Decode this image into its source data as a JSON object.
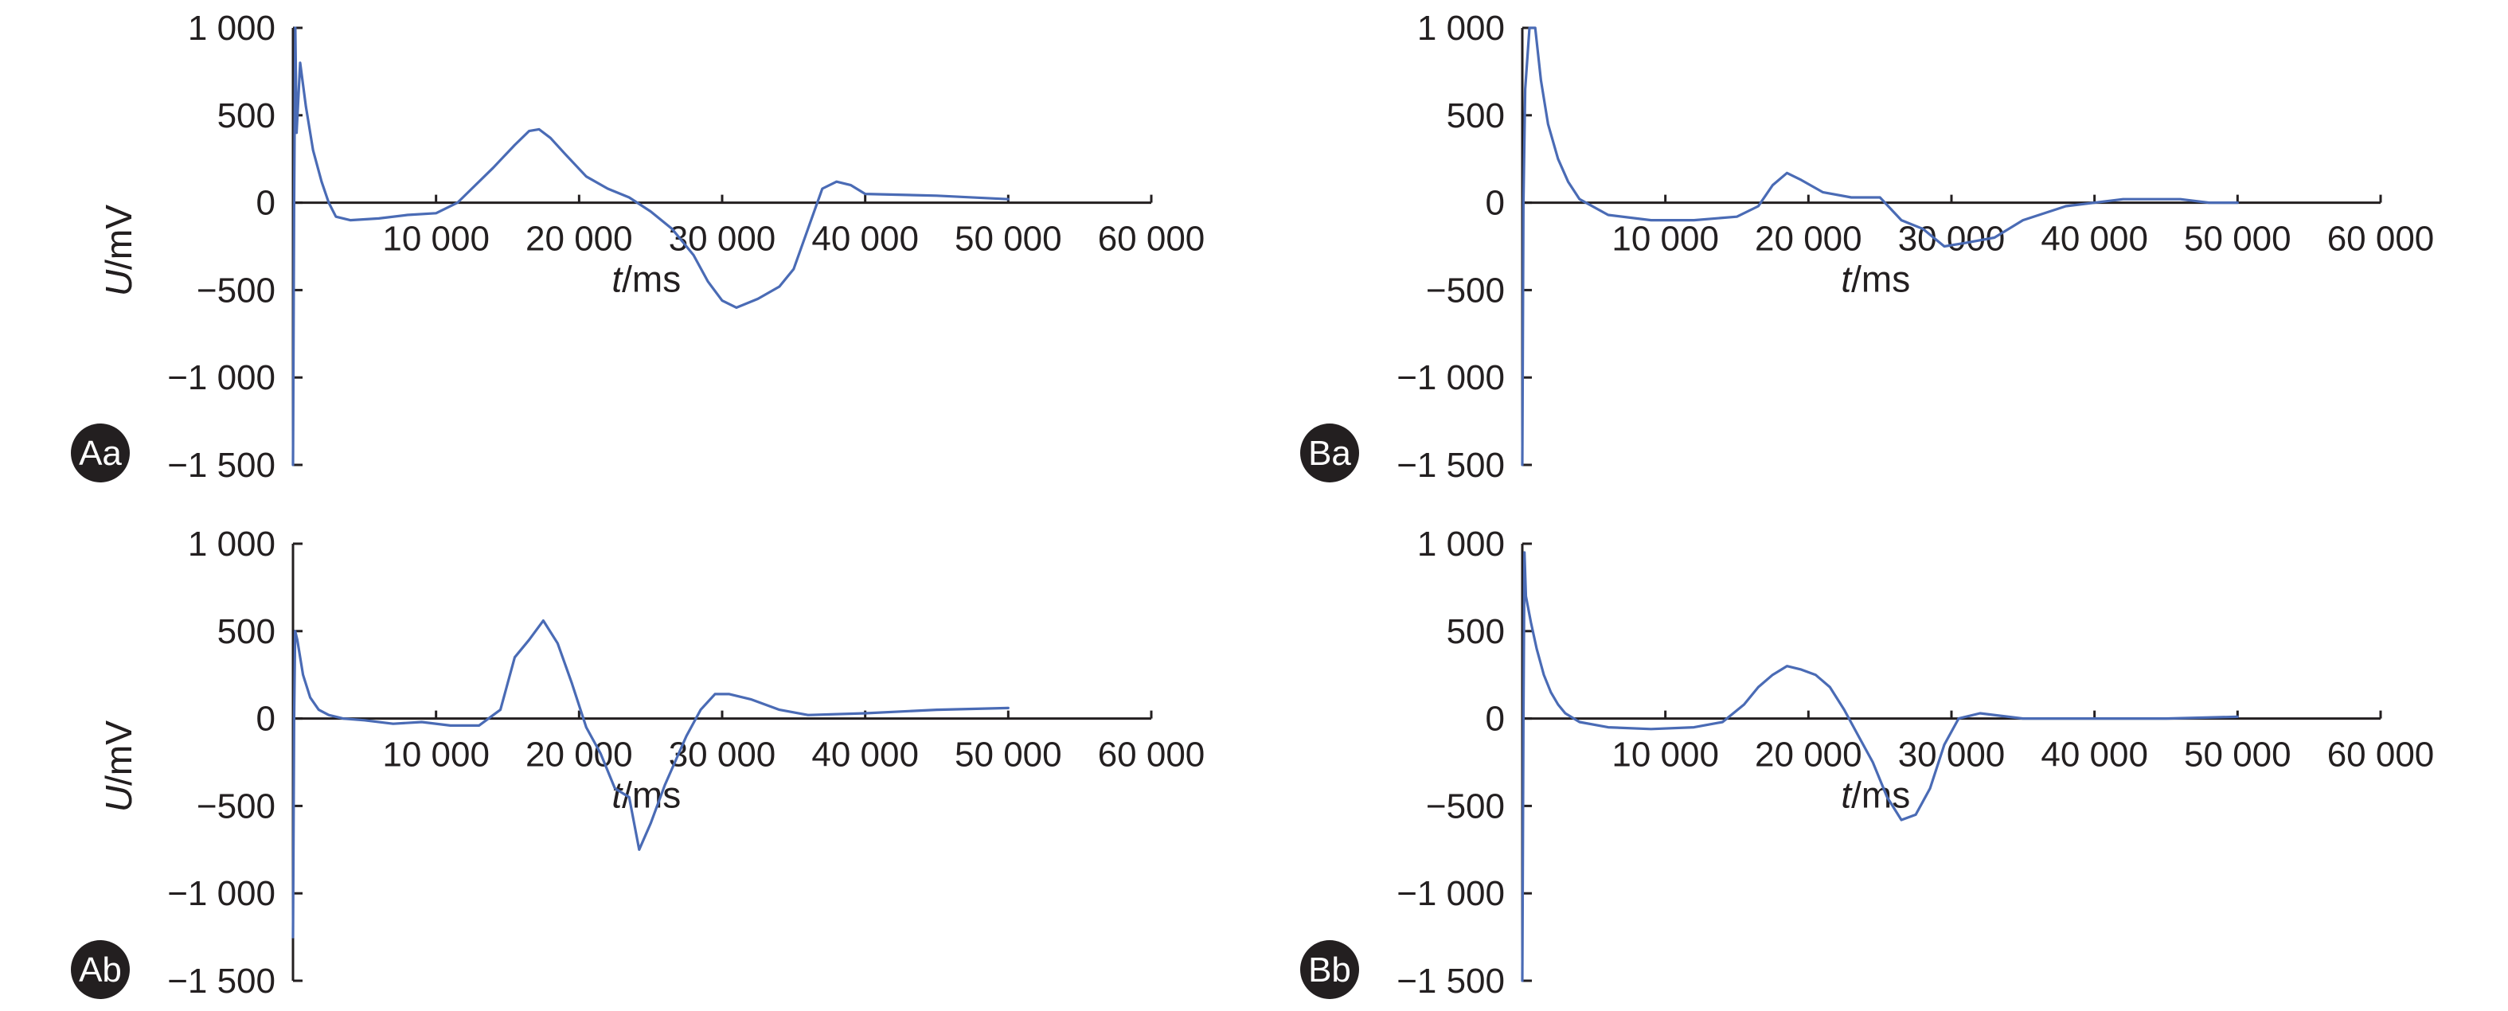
{
  "figure": {
    "line_color": "#4a6bb5",
    "badge_color": "#231f20"
  },
  "chart_data": [
    {
      "id": "Aa",
      "panel_label": "Aa",
      "type": "line",
      "xlabel": "t/ms",
      "xlabel_var": "t",
      "xlabel_unit": "/ms",
      "ylabel": "U/mV",
      "ylabel_var": "U",
      "ylabel_unit": "/mV",
      "xlim": [
        0,
        60000
      ],
      "ylim": [
        -1500,
        1000
      ],
      "x_ticks": [
        "10 000",
        "20 000",
        "30 000",
        "40 000",
        "50 000",
        "60 000"
      ],
      "x_tick_values": [
        10000,
        20000,
        30000,
        40000,
        50000,
        60000
      ],
      "y_ticks": [
        "1 000",
        "500",
        "0",
        "−500",
        "−1 000",
        "−1 500"
      ],
      "y_tick_values": [
        1000,
        500,
        0,
        -500,
        -1000,
        -1500
      ],
      "series": [
        {
          "x": [
            0,
            80,
            160,
            250,
            500,
            900,
            1400,
            2000,
            2500,
            3000,
            4000,
            6000,
            8000,
            10000,
            11500,
            12500,
            14000,
            15500,
            16500,
            17200,
            18000,
            19000,
            20500,
            22000,
            23500,
            25000,
            26500,
            28000,
            29000,
            30000,
            31000,
            32500,
            34000,
            35000,
            36000,
            37000,
            38000,
            39000,
            40000,
            45000,
            50000
          ],
          "y": [
            -1500,
            0,
            1000,
            400,
            800,
            550,
            300,
            120,
            0,
            -80,
            -100,
            -90,
            -70,
            -60,
            0,
            80,
            200,
            330,
            410,
            420,
            370,
            280,
            150,
            80,
            30,
            -50,
            -150,
            -300,
            -450,
            -560,
            -600,
            -550,
            -480,
            -380,
            -150,
            80,
            120,
            100,
            50,
            40,
            20
          ]
        }
      ]
    },
    {
      "id": "Ba",
      "panel_label": "Ba",
      "type": "line",
      "xlabel": "t/ms",
      "xlabel_var": "t",
      "xlabel_unit": "/ms",
      "ylabel": "U/mV",
      "ylabel_var": "U",
      "ylabel_unit": "/mV",
      "xlim": [
        0,
        60000
      ],
      "ylim": [
        -1500,
        1000
      ],
      "x_ticks": [
        "10 000",
        "20 000",
        "30 000",
        "40 000",
        "50 000",
        "60 000"
      ],
      "x_tick_values": [
        10000,
        20000,
        30000,
        40000,
        50000,
        60000
      ],
      "y_ticks": [
        "1 000",
        "500",
        "0",
        "−500",
        "−1 000",
        "−1 500"
      ],
      "y_tick_values": [
        1000,
        500,
        0,
        -500,
        -1000,
        -1500
      ],
      "series": [
        {
          "x": [
            0,
            80,
            200,
            500,
            900,
            1300,
            1800,
            2500,
            3200,
            4000,
            6000,
            9000,
            12000,
            15000,
            16500,
            17500,
            18500,
            19500,
            21000,
            23000,
            25000,
            26500,
            28000,
            29500,
            31000,
            33000,
            35000,
            38000,
            42000,
            46000,
            48000,
            50000
          ],
          "y": [
            -1500,
            0,
            650,
            1000,
            1000,
            700,
            450,
            250,
            120,
            20,
            -70,
            -100,
            -100,
            -80,
            -20,
            100,
            170,
            130,
            60,
            30,
            30,
            -100,
            -150,
            -250,
            -230,
            -200,
            -100,
            -20,
            20,
            20,
            0,
            0
          ]
        }
      ]
    },
    {
      "id": "Ab",
      "panel_label": "Ab",
      "type": "line",
      "xlabel": "t/ms",
      "xlabel_var": "t",
      "xlabel_unit": "/ms",
      "ylabel": "U/mV",
      "ylabel_var": "U",
      "ylabel_unit": "/mV",
      "xlim": [
        0,
        60000
      ],
      "ylim": [
        -1500,
        1000
      ],
      "x_ticks": [
        "10 000",
        "20 000",
        "30 000",
        "40 000",
        "50 000",
        "60 000"
      ],
      "x_tick_values": [
        10000,
        20000,
        30000,
        40000,
        50000,
        60000
      ],
      "y_ticks": [
        "1 000",
        "500",
        "0",
        "−500",
        "−1 000",
        "−1 500"
      ],
      "y_tick_values": [
        1000,
        500,
        0,
        -500,
        -1000,
        -1500
      ],
      "series": [
        {
          "x": [
            0,
            80,
            150,
            300,
            700,
            1200,
            1800,
            2500,
            3500,
            5000,
            7000,
            9000,
            11000,
            13000,
            14500,
            15500,
            16500,
            17500,
            18500,
            19500,
            20500,
            21500,
            22500,
            23500,
            24200,
            25000,
            26000,
            27500,
            28500,
            29500,
            30500,
            32000,
            34000,
            36000,
            40000,
            45000,
            50000
          ],
          "y": [
            -1250,
            0,
            500,
            450,
            250,
            120,
            50,
            20,
            0,
            -10,
            -30,
            -20,
            -40,
            -40,
            50,
            350,
            450,
            560,
            430,
            200,
            -50,
            -200,
            -400,
            -450,
            -750,
            -600,
            -380,
            -100,
            50,
            140,
            140,
            110,
            50,
            20,
            30,
            50,
            60
          ]
        }
      ]
    },
    {
      "id": "Bb",
      "panel_label": "Bb",
      "type": "line",
      "xlabel": "t/ms",
      "xlabel_var": "t",
      "xlabel_unit": "/ms",
      "ylabel": "U/mV",
      "ylabel_var": "U",
      "ylabel_unit": "/mV",
      "xlim": [
        0,
        60000
      ],
      "ylim": [
        -1500,
        1000
      ],
      "x_ticks": [
        "10 000",
        "20 000",
        "30 000",
        "40 000",
        "50 000",
        "60 000"
      ],
      "x_tick_values": [
        10000,
        20000,
        30000,
        40000,
        50000,
        60000
      ],
      "y_ticks": [
        "1 000",
        "500",
        "0",
        "−500",
        "−1 000",
        "−1 500"
      ],
      "y_tick_values": [
        1000,
        500,
        0,
        -500,
        -1000,
        -1500
      ],
      "series": [
        {
          "x": [
            0,
            80,
            150,
            250,
            600,
            1000,
            1500,
            2000,
            2500,
            3000,
            4000,
            6000,
            9000,
            12000,
            14000,
            15500,
            16500,
            17500,
            18500,
            19500,
            20500,
            21500,
            22500,
            23500,
            24500,
            25500,
            26500,
            27500,
            28500,
            29500,
            30500,
            32000,
            35000,
            40000,
            45000,
            50000
          ],
          "y": [
            -1500,
            0,
            950,
            700,
            550,
            400,
            250,
            150,
            80,
            30,
            -20,
            -50,
            -60,
            -50,
            -20,
            80,
            180,
            250,
            300,
            280,
            250,
            180,
            50,
            -100,
            -250,
            -450,
            -580,
            -550,
            -400,
            -150,
            0,
            30,
            0,
            0,
            0,
            10
          ]
        }
      ]
    }
  ]
}
